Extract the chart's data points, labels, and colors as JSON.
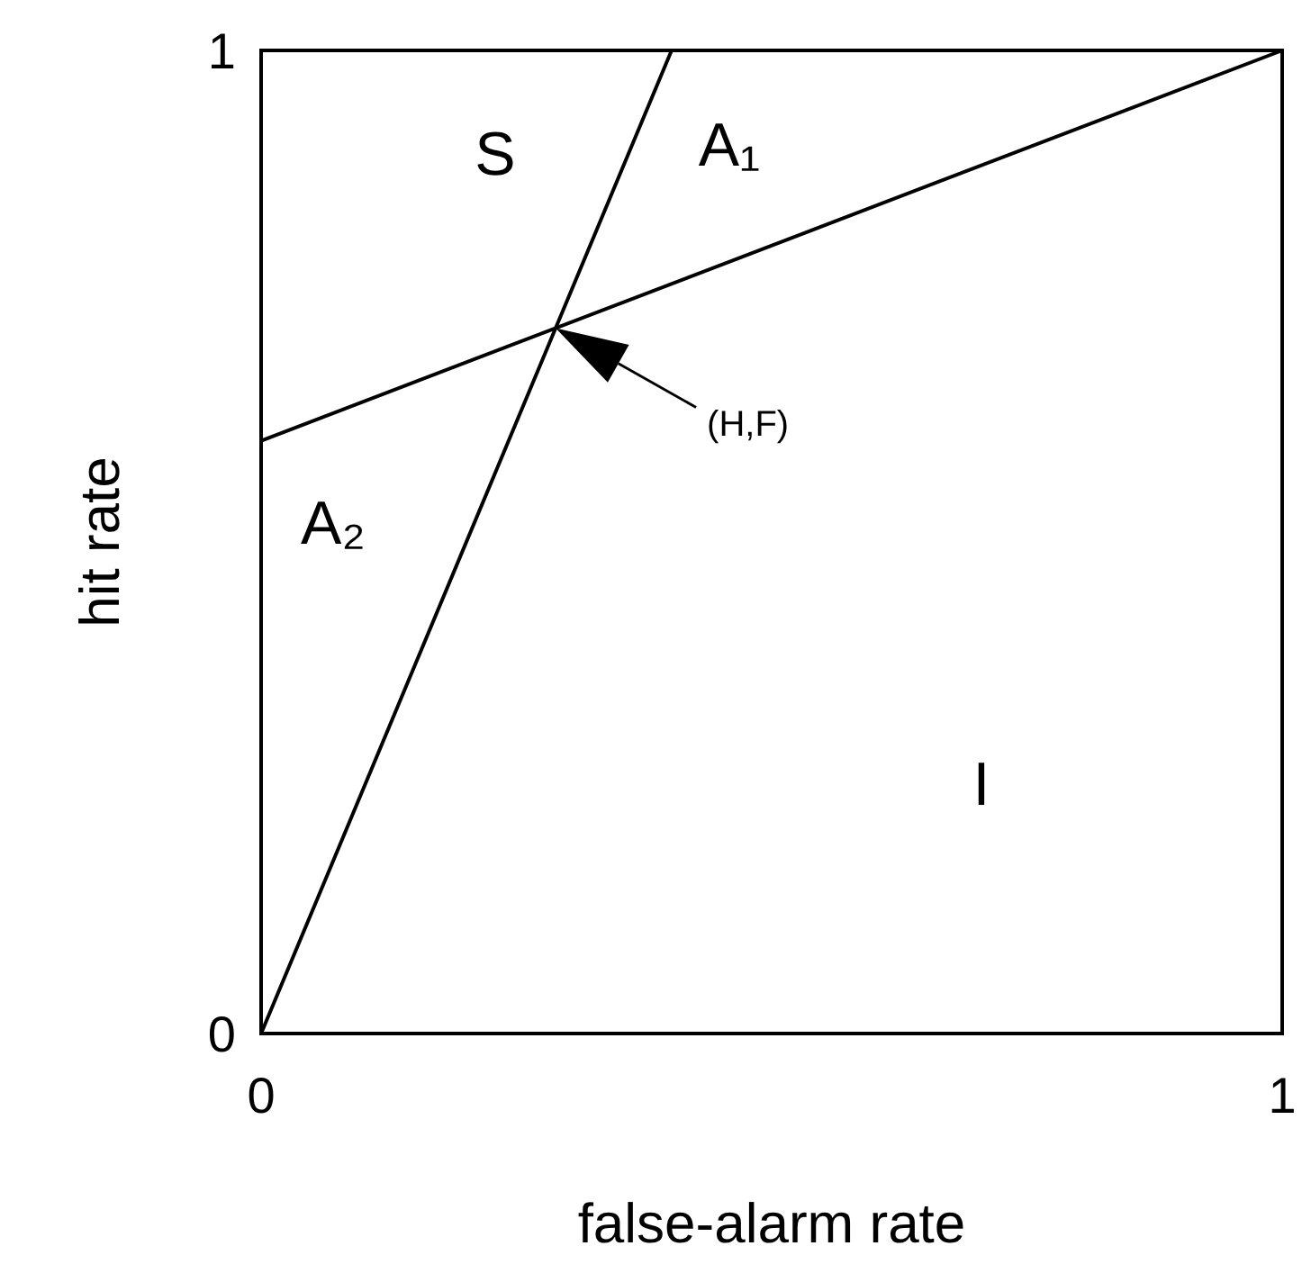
{
  "chart_data": {
    "type": "line",
    "xlabel": "false-alarm rate",
    "ylabel": "hit rate",
    "xlim": [
      0,
      1
    ],
    "ylim": [
      0,
      1
    ],
    "xticks": [
      0,
      1
    ],
    "yticks": [
      0,
      1
    ],
    "marker": "none",
    "line_style": "solid",
    "series": [
      {
        "color": "#000000",
        "x": [
          0,
          0.402
        ],
        "values": [
          0,
          1
        ]
      },
      {
        "color": "#000000",
        "x": [
          0,
          1
        ],
        "values": [
          0.603,
          1
        ]
      }
    ],
    "annotations": [
      "S",
      "A₁",
      "A₂",
      "I",
      "(H,F)"
    ]
  }
}
